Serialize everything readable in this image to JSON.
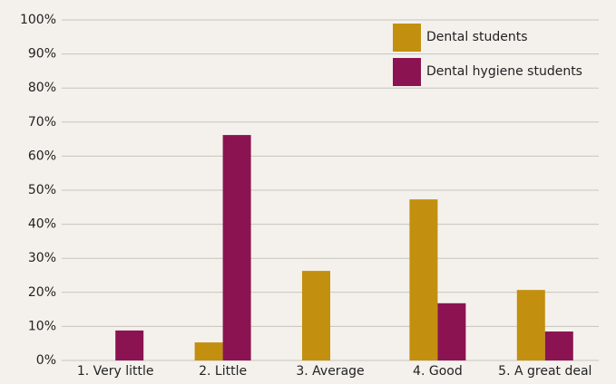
{
  "chart_data": {
    "type": "bar",
    "categories": [
      "1. Very little",
      "2. Little",
      "3. Average",
      "4. Good",
      "5. A great deal"
    ],
    "series": [
      {
        "name": "Dental students",
        "color": "#c28f0f",
        "values": [
          0,
          5.3,
          26.3,
          47.3,
          20.7
        ]
      },
      {
        "name": "Dental hygiene students",
        "color": "#8b1352",
        "values": [
          8.8,
          66.2,
          0,
          16.8,
          8.5
        ]
      }
    ],
    "ylim": [
      0,
      100
    ],
    "yticks": [
      {
        "value": 0,
        "label": "0%"
      },
      {
        "value": 10,
        "label": "10%"
      },
      {
        "value": 20,
        "label": "20%"
      },
      {
        "value": 30,
        "label": "30%"
      },
      {
        "value": 40,
        "label": "40%"
      },
      {
        "value": 50,
        "label": "50%"
      },
      {
        "value": 60,
        "label": "60%"
      },
      {
        "value": 70,
        "label": "70%"
      },
      {
        "value": 80,
        "label": "80%"
      },
      {
        "value": 90,
        "label": "90%"
      },
      {
        "value": 100,
        "label": "100%"
      }
    ],
    "grid": true,
    "legend": "top-right"
  }
}
